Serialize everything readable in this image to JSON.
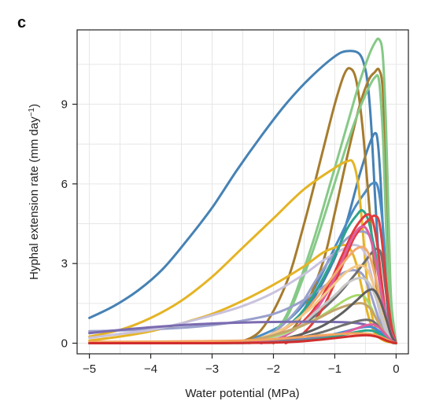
{
  "panel_label": "c",
  "chart_data": {
    "type": "line",
    "title": "",
    "xlabel": "Water potential (MPa)",
    "ylabel": {
      "prefix": "Hyphal extension rate (mm day",
      "sup": "−1",
      "suffix": ")"
    },
    "xlim": [
      -5.2,
      0.2
    ],
    "ylim": [
      -0.4,
      11.8
    ],
    "grid": true,
    "legend": "none",
    "x_ticks": [
      {
        "value": -5,
        "label": "−5"
      },
      {
        "value": -4,
        "label": "−4"
      },
      {
        "value": -3,
        "label": "−3"
      },
      {
        "value": -2,
        "label": "−2"
      },
      {
        "value": -1,
        "label": "−1"
      },
      {
        "value": 0,
        "label": "0"
      }
    ],
    "y_ticks": [
      {
        "value": 0,
        "label": "0"
      },
      {
        "value": 3,
        "label": "3"
      },
      {
        "value": 6,
        "label": "6"
      },
      {
        "value": 9,
        "label": "9"
      }
    ],
    "series": [
      {
        "color": "#4682b4",
        "x": [
          -5.0,
          -4.6,
          -4.2,
          -3.8,
          -3.4,
          -3.0,
          -2.6,
          -2.2,
          -1.8,
          -1.4,
          -1.0,
          -0.8,
          -0.6,
          -0.5,
          -0.45,
          -0.4,
          -0.35,
          -0.3,
          -0.25,
          -0.2,
          -0.1,
          0.0
        ],
        "y": [
          0.95,
          1.4,
          2.0,
          2.8,
          3.9,
          5.1,
          6.5,
          7.8,
          9.0,
          10.0,
          10.8,
          11.0,
          10.9,
          10.3,
          9.5,
          8.0,
          5.8,
          3.8,
          2.0,
          0.9,
          0.1,
          0.0
        ]
      },
      {
        "color": "#4682b4",
        "x": [
          -2.6,
          -2.2,
          -1.8,
          -1.4,
          -1.0,
          -0.8,
          -0.6,
          -0.45,
          -0.35,
          -0.3,
          -0.25,
          -0.2,
          -0.15,
          -0.1,
          0.0
        ],
        "y": [
          0.0,
          0.2,
          0.6,
          1.5,
          3.2,
          4.6,
          6.3,
          7.4,
          7.9,
          7.6,
          6.0,
          3.5,
          1.6,
          0.6,
          0.0
        ]
      },
      {
        "color": "#4b8cc4",
        "x": [
          -2.6,
          -2.2,
          -1.8,
          -1.4,
          -1.0,
          -0.7,
          -0.5,
          -0.4,
          -0.3,
          -0.22,
          -0.15,
          -0.1,
          0.0
        ],
        "y": [
          0.0,
          0.3,
          0.8,
          1.8,
          3.6,
          5.0,
          5.7,
          6.0,
          5.9,
          4.5,
          2.0,
          0.7,
          0.0
        ]
      },
      {
        "color": "#a67c2e",
        "x": [
          -2.6,
          -2.2,
          -1.8,
          -1.5,
          -1.2,
          -1.0,
          -0.85,
          -0.75,
          -0.65,
          -0.55,
          -0.45,
          -0.35,
          -0.25,
          -0.15,
          -0.05,
          0.0
        ],
        "y": [
          0.0,
          0.5,
          2.2,
          4.5,
          7.2,
          9.0,
          10.1,
          10.35,
          9.9,
          8.2,
          5.5,
          2.8,
          1.0,
          0.3,
          0.05,
          0.0
        ]
      },
      {
        "color": "#a67c2e",
        "x": [
          -2.0,
          -1.6,
          -1.2,
          -1.0,
          -0.8,
          -0.6,
          -0.45,
          -0.35,
          -0.28,
          -0.22,
          -0.17,
          -0.12,
          -0.08,
          0.0
        ],
        "y": [
          0.0,
          0.8,
          3.0,
          4.9,
          7.0,
          8.9,
          9.9,
          10.2,
          10.3,
          9.6,
          6.8,
          3.2,
          1.0,
          0.0
        ]
      },
      {
        "color": "#86c987",
        "x": [
          -2.2,
          -1.8,
          -1.4,
          -1.1,
          -0.8,
          -0.6,
          -0.45,
          -0.35,
          -0.28,
          -0.22,
          -0.17,
          -0.12,
          -0.08,
          0.0
        ],
        "y": [
          0.0,
          1.0,
          3.5,
          5.8,
          8.2,
          9.8,
          10.8,
          11.3,
          11.45,
          10.9,
          8.5,
          4.5,
          1.6,
          0.0
        ]
      },
      {
        "color": "#86c987",
        "x": [
          -2.2,
          -1.8,
          -1.4,
          -1.1,
          -0.8,
          -0.6,
          -0.45,
          -0.35,
          -0.28,
          -0.22,
          -0.18,
          -0.12,
          0.0
        ],
        "y": [
          0.0,
          0.9,
          3.2,
          5.3,
          7.5,
          8.8,
          9.6,
          10.0,
          9.9,
          8.0,
          5.5,
          2.0,
          0.0
        ]
      },
      {
        "color": "#e5b425",
        "x": [
          -5.0,
          -4.5,
          -4.0,
          -3.5,
          -3.0,
          -2.5,
          -2.0,
          -1.5,
          -1.0,
          -0.8,
          -0.7,
          -0.62,
          -0.55,
          -0.5,
          -0.45,
          -0.38,
          -0.3,
          -0.2,
          -0.1,
          0.0
        ],
        "y": [
          0.25,
          0.5,
          0.95,
          1.6,
          2.5,
          3.6,
          4.7,
          5.8,
          6.6,
          6.85,
          6.8,
          6.0,
          4.4,
          3.0,
          1.8,
          0.9,
          0.4,
          0.15,
          0.05,
          0.0
        ]
      },
      {
        "color": "#e5b425",
        "x": [
          -5.0,
          -4.5,
          -4.0,
          -3.5,
          -3.0,
          -2.5,
          -2.0,
          -1.5,
          -1.2,
          -1.0,
          -0.85,
          -0.75,
          -0.65,
          -0.55,
          -0.45,
          -0.35,
          -0.2,
          0.0
        ],
        "y": [
          0.1,
          0.25,
          0.45,
          0.75,
          1.1,
          1.6,
          2.2,
          2.9,
          3.4,
          3.6,
          3.7,
          3.55,
          3.0,
          2.0,
          1.0,
          0.4,
          0.1,
          0.0
        ]
      },
      {
        "color": "#9aa0cc",
        "x": [
          -5.0,
          -4.5,
          -4.0,
          -3.5,
          -3.0,
          -2.5,
          -2.0,
          -1.6,
          -1.2,
          -0.9,
          -0.7,
          -0.55,
          -0.45,
          -0.35,
          -0.25,
          -0.15,
          0.0
        ],
        "y": [
          0.45,
          0.48,
          0.52,
          0.58,
          0.68,
          0.85,
          1.1,
          1.5,
          2.1,
          2.6,
          2.75,
          2.6,
          2.1,
          1.4,
          0.7,
          0.3,
          0.0
        ]
      },
      {
        "color": "#c9c2dd",
        "x": [
          -5.0,
          -4.5,
          -4.0,
          -3.5,
          -3.0,
          -2.5,
          -2.0,
          -1.5,
          -1.2,
          -0.9,
          -0.7,
          -0.55,
          -0.45,
          -0.35,
          -0.25,
          -0.15,
          0.0
        ],
        "y": [
          0.2,
          0.35,
          0.5,
          0.75,
          1.05,
          1.4,
          1.9,
          2.6,
          3.1,
          3.5,
          3.7,
          3.55,
          3.0,
          2.0,
          1.0,
          0.4,
          0.0
        ]
      },
      {
        "color": "#9aa0cc",
        "x": [
          -2.4,
          -2.0,
          -1.6,
          -1.3,
          -1.0,
          -0.8,
          -0.6,
          -0.45,
          -0.35,
          -0.28,
          -0.2,
          -0.12,
          0.0
        ],
        "y": [
          0.0,
          0.4,
          1.3,
          2.4,
          3.4,
          3.95,
          4.2,
          4.1,
          3.6,
          2.6,
          1.3,
          0.5,
          0.0
        ]
      },
      {
        "color": "#6f6f6f",
        "x": [
          -2.6,
          -2.2,
          -1.8,
          -1.4,
          -1.0,
          -0.7,
          -0.5,
          -0.38,
          -0.3,
          -0.24,
          -0.18,
          -0.1,
          0.0
        ],
        "y": [
          0.0,
          0.15,
          0.4,
          0.9,
          1.7,
          2.5,
          3.1,
          3.45,
          3.55,
          3.3,
          2.2,
          0.8,
          0.0
        ]
      },
      {
        "color": "#2ca58d",
        "x": [
          -2.4,
          -2.0,
          -1.6,
          -1.3,
          -1.0,
          -0.8,
          -0.65,
          -0.55,
          -0.45,
          -0.35,
          -0.25,
          -0.15,
          0.0
        ],
        "y": [
          0.0,
          0.3,
          1.0,
          2.0,
          3.3,
          4.3,
          4.8,
          5.0,
          4.6,
          3.5,
          2.0,
          0.8,
          0.0
        ]
      },
      {
        "color": "#e23c3c",
        "x": [
          -2.2,
          -1.8,
          -1.4,
          -1.1,
          -0.9,
          -0.7,
          -0.55,
          -0.45,
          -0.38,
          -0.3,
          -0.22,
          -0.14,
          0.0
        ],
        "y": [
          0.0,
          0.3,
          1.1,
          2.2,
          3.2,
          4.2,
          4.7,
          4.85,
          4.6,
          3.6,
          2.0,
          0.7,
          0.0
        ]
      },
      {
        "color": "#e23c3c",
        "x": [
          -1.8,
          -1.5,
          -1.2,
          -0.9,
          -0.7,
          -0.55,
          -0.42,
          -0.35,
          -0.28,
          -0.22,
          -0.15,
          -0.08,
          0.0
        ],
        "y": [
          0.0,
          0.4,
          1.3,
          2.8,
          3.9,
          4.4,
          4.7,
          4.8,
          4.6,
          3.6,
          2.0,
          0.7,
          0.0
        ]
      },
      {
        "color": "#e05fa0",
        "x": [
          -2.2,
          -1.8,
          -1.4,
          -1.1,
          -0.9,
          -0.75,
          -0.62,
          -0.5,
          -0.4,
          -0.3,
          -0.2,
          -0.1,
          0.0
        ],
        "y": [
          0.0,
          0.3,
          1.0,
          2.0,
          3.0,
          3.8,
          4.3,
          4.35,
          3.8,
          2.7,
          1.4,
          0.5,
          0.0
        ]
      },
      {
        "color": "#f2a96b",
        "x": [
          -2.4,
          -2.0,
          -1.6,
          -1.3,
          -1.0,
          -0.8,
          -0.65,
          -0.52,
          -0.42,
          -0.32,
          -0.22,
          -0.12,
          0.0
        ],
        "y": [
          0.0,
          0.3,
          0.9,
          1.7,
          2.6,
          3.2,
          3.55,
          3.6,
          3.2,
          2.3,
          1.2,
          0.4,
          0.0
        ]
      },
      {
        "color": "#f4c98a",
        "x": [
          -2.6,
          -2.2,
          -1.8,
          -1.4,
          -1.1,
          -0.85,
          -0.65,
          -0.5,
          -0.4,
          -0.3,
          -0.2,
          -0.1,
          0.0
        ],
        "y": [
          0.0,
          0.2,
          0.6,
          1.3,
          2.0,
          2.6,
          2.9,
          2.85,
          2.4,
          1.7,
          0.9,
          0.3,
          0.0
        ]
      },
      {
        "color": "#c7c7c7",
        "x": [
          -2.4,
          -2.0,
          -1.6,
          -1.3,
          -1.0,
          -0.8,
          -0.62,
          -0.5,
          -0.4,
          -0.3,
          -0.2,
          -0.1,
          0.0
        ],
        "y": [
          0.0,
          0.2,
          0.6,
          1.2,
          1.8,
          2.25,
          2.45,
          2.4,
          2.1,
          1.5,
          0.8,
          0.3,
          0.0
        ]
      },
      {
        "color": "#a6d96a",
        "x": [
          -2.6,
          -2.2,
          -1.8,
          -1.4,
          -1.1,
          -0.85,
          -0.65,
          -0.52,
          -0.42,
          -0.32,
          -0.22,
          -0.12,
          0.0
        ],
        "y": [
          0.0,
          0.15,
          0.4,
          0.8,
          1.2,
          1.6,
          1.8,
          1.75,
          1.4,
          0.9,
          0.5,
          0.2,
          0.0
        ]
      },
      {
        "color": "#c3a56b",
        "x": [
          -2.8,
          -2.4,
          -2.0,
          -1.6,
          -1.3,
          -1.0,
          -0.75,
          -0.55,
          -0.42,
          -0.32,
          -0.22,
          -0.12,
          0.0
        ],
        "y": [
          0.0,
          0.1,
          0.3,
          0.6,
          0.9,
          1.25,
          1.45,
          1.5,
          1.3,
          0.9,
          0.5,
          0.2,
          0.0
        ]
      },
      {
        "color": "#7a6bb0",
        "x": [
          -5.0,
          -4.5,
          -4.0,
          -3.5,
          -3.0,
          -2.5,
          -2.0,
          -1.5,
          -1.0,
          -0.7,
          -0.5,
          -0.35,
          -0.25,
          -0.15,
          -0.05,
          0.0
        ],
        "y": [
          0.38,
          0.5,
          0.6,
          0.68,
          0.74,
          0.78,
          0.8,
          0.81,
          0.8,
          0.77,
          0.7,
          0.55,
          0.35,
          0.15,
          0.03,
          0.0
        ]
      },
      {
        "color": "#5f5f5f",
        "x": [
          -5.0,
          -4.0,
          -3.0,
          -2.5,
          -2.0,
          -1.6,
          -1.2,
          -0.9,
          -0.65,
          -0.48,
          -0.36,
          -0.26,
          -0.16,
          -0.08,
          0.0
        ],
        "y": [
          0.0,
          0.0,
          0.02,
          0.05,
          0.12,
          0.3,
          0.65,
          1.1,
          1.6,
          1.95,
          2.0,
          1.6,
          0.9,
          0.3,
          0.0
        ]
      },
      {
        "color": "#6f6f6f",
        "x": [
          -5.0,
          -4.0,
          -3.0,
          -2.5,
          -2.0,
          -1.6,
          -1.2,
          -0.9,
          -0.65,
          -0.48,
          -0.36,
          -0.26,
          -0.16,
          -0.08,
          0.0
        ],
        "y": [
          0.0,
          0.0,
          0.01,
          0.03,
          0.08,
          0.2,
          0.42,
          0.65,
          0.82,
          0.88,
          0.8,
          0.55,
          0.28,
          0.1,
          0.0
        ]
      },
      {
        "color": "#3c8fd0",
        "x": [
          -5.0,
          -4.0,
          -3.0,
          -2.5,
          -2.0,
          -1.6,
          -1.2,
          -0.9,
          -0.65,
          -0.48,
          -0.36,
          -0.26,
          -0.16,
          -0.08,
          0.0
        ],
        "y": [
          0.0,
          0.0,
          0.0,
          0.02,
          0.05,
          0.12,
          0.25,
          0.4,
          0.55,
          0.62,
          0.58,
          0.42,
          0.22,
          0.08,
          0.0
        ]
      },
      {
        "color": "#e05fa0",
        "x": [
          -5.0,
          -4.0,
          -3.0,
          -2.5,
          -2.0,
          -1.6,
          -1.2,
          -0.9,
          -0.65,
          -0.48,
          -0.36,
          -0.26,
          -0.16,
          -0.08,
          0.0
        ],
        "y": [
          0.0,
          0.0,
          0.0,
          0.02,
          0.05,
          0.1,
          0.2,
          0.35,
          0.55,
          0.68,
          0.7,
          0.55,
          0.3,
          0.1,
          0.0
        ]
      },
      {
        "color": "#2ca58d",
        "x": [
          -5.0,
          -4.0,
          -3.0,
          -2.5,
          -2.0,
          -1.6,
          -1.2,
          -0.9,
          -0.65,
          -0.48,
          -0.36,
          -0.26,
          -0.16,
          -0.08,
          0.0
        ],
        "y": [
          0.0,
          0.0,
          0.0,
          0.01,
          0.03,
          0.08,
          0.18,
          0.3,
          0.42,
          0.48,
          0.45,
          0.33,
          0.18,
          0.06,
          0.0
        ]
      },
      {
        "color": "#f4a460",
        "x": [
          -5.0,
          -4.0,
          -3.0,
          -2.5,
          -2.0,
          -1.6,
          -1.2,
          -0.9,
          -0.65,
          -0.48,
          -0.36,
          -0.26,
          -0.16,
          -0.08,
          0.0
        ],
        "y": [
          0.05,
          0.06,
          0.08,
          0.1,
          0.15,
          0.22,
          0.3,
          0.35,
          0.37,
          0.36,
          0.32,
          0.25,
          0.15,
          0.06,
          0.0
        ]
      },
      {
        "color": "#d22d2d",
        "x": [
          -5.0,
          -4.0,
          -3.0,
          -2.5,
          -2.0,
          -1.6,
          -1.2,
          -0.9,
          -0.65,
          -0.48,
          -0.36,
          -0.26,
          -0.16,
          -0.08,
          0.0
        ],
        "y": [
          0.0,
          0.0,
          0.0,
          0.01,
          0.02,
          0.06,
          0.14,
          0.22,
          0.28,
          0.3,
          0.27,
          0.2,
          0.1,
          0.04,
          0.0
        ]
      }
    ]
  }
}
